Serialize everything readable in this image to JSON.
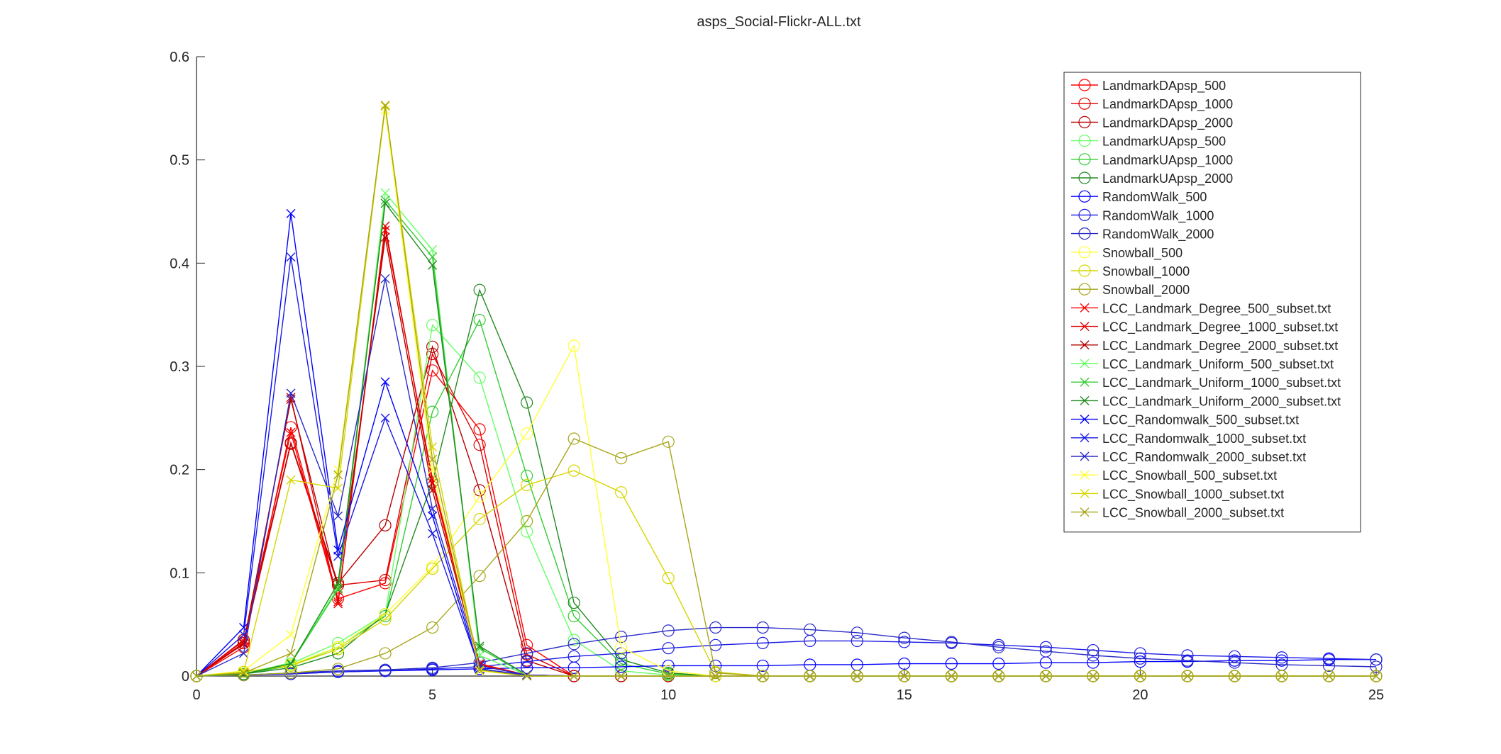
{
  "chart_data": {
    "type": "line",
    "title": "asps_Social-Flickr-ALL.txt",
    "xlabel": "",
    "ylabel": "",
    "xlim": [
      0,
      25
    ],
    "ylim": [
      0,
      0.6
    ],
    "xticks": [
      0,
      5,
      10,
      15,
      20,
      25
    ],
    "xtick_labels": [
      "0",
      "5",
      "10",
      "15",
      "20",
      "25"
    ],
    "yticks": [
      0,
      0.1,
      0.2,
      0.3,
      0.4,
      0.5,
      0.6
    ],
    "ytick_labels": [
      "0",
      "0.1",
      "0.2",
      "0.3",
      "0.4",
      "0.5",
      "0.6"
    ],
    "grid": false,
    "legend_position": "top-right",
    "x": [
      0,
      1,
      2,
      3,
      4,
      5,
      6,
      7,
      8,
      9,
      10,
      11,
      12,
      13,
      14,
      15,
      16,
      17,
      18,
      19,
      20,
      21,
      22,
      23,
      24,
      25
    ],
    "series": [
      {
        "name": "LandmarkDApsp_500",
        "color": "#ff0000",
        "marker": "circle",
        "values": [
          0,
          0.028,
          0.241,
          0.075,
          0.09,
          0.296,
          0.239,
          0.03,
          0,
          0,
          0,
          0,
          0,
          0,
          0,
          0,
          0,
          0,
          0,
          0,
          0,
          0,
          0,
          0,
          0,
          0
        ]
      },
      {
        "name": "LandmarkDApsp_1000",
        "color": "#e00000",
        "marker": "circle",
        "values": [
          0,
          0.032,
          0.225,
          0.088,
          0.093,
          0.312,
          0.224,
          0.021,
          0,
          0,
          0,
          0,
          0,
          0,
          0,
          0,
          0,
          0,
          0,
          0,
          0,
          0,
          0,
          0,
          0,
          0
        ]
      },
      {
        "name": "LandmarkDApsp_2000",
        "color": "#b80000",
        "marker": "circle",
        "values": [
          0,
          0.035,
          0.226,
          0.09,
          0.146,
          0.319,
          0.18,
          0.015,
          0,
          0,
          0,
          0,
          0,
          0,
          0,
          0,
          0,
          0,
          0,
          0,
          0,
          0,
          0,
          0,
          0,
          0
        ]
      },
      {
        "name": "LandmarkUApsp_500",
        "color": "#66ff66",
        "marker": "circle",
        "values": [
          0,
          0.002,
          0.012,
          0.032,
          0.06,
          0.34,
          0.289,
          0.14,
          0.035,
          0.005,
          0.001,
          0,
          0,
          0,
          0,
          0,
          0,
          0,
          0,
          0,
          0,
          0,
          0,
          0,
          0,
          0
        ]
      },
      {
        "name": "LandmarkUApsp_1000",
        "color": "#33cc33",
        "marker": "circle",
        "values": [
          0,
          0.002,
          0.01,
          0.028,
          0.058,
          0.256,
          0.345,
          0.194,
          0.058,
          0.012,
          0.002,
          0,
          0,
          0,
          0,
          0,
          0,
          0,
          0,
          0,
          0,
          0,
          0,
          0,
          0,
          0
        ]
      },
      {
        "name": "LandmarkUApsp_2000",
        "color": "#228b22",
        "marker": "circle",
        "values": [
          0,
          0.002,
          0.008,
          0.022,
          0.06,
          0.188,
          0.374,
          0.265,
          0.071,
          0.016,
          0.003,
          0,
          0,
          0,
          0,
          0,
          0,
          0,
          0,
          0,
          0,
          0,
          0,
          0,
          0,
          0
        ]
      },
      {
        "name": "RandomWalk_500",
        "color": "#0000ff",
        "marker": "circle",
        "values": [
          0,
          0.001,
          0.002,
          0.004,
          0.005,
          0.006,
          0.007,
          0.008,
          0.008,
          0.009,
          0.01,
          0.01,
          0.01,
          0.011,
          0.011,
          0.012,
          0.012,
          0.012,
          0.013,
          0.013,
          0.014,
          0.014,
          0.015,
          0.015,
          0.016,
          0.016
        ]
      },
      {
        "name": "RandomWalk_1000",
        "color": "#1a1ae6",
        "marker": "circle",
        "values": [
          0,
          0.001,
          0.002,
          0.004,
          0.005,
          0.007,
          0.009,
          0.014,
          0.019,
          0.022,
          0.027,
          0.03,
          0.032,
          0.034,
          0.034,
          0.033,
          0.032,
          0.03,
          0.028,
          0.025,
          0.022,
          0.02,
          0.019,
          0.018,
          0.017,
          0.016
        ]
      },
      {
        "name": "RandomWalk_2000",
        "color": "#2a2ac8",
        "marker": "circle",
        "values": [
          0,
          0.001,
          0.003,
          0.005,
          0.006,
          0.008,
          0.013,
          0.022,
          0.031,
          0.038,
          0.044,
          0.047,
          0.047,
          0.045,
          0.042,
          0.037,
          0.033,
          0.028,
          0.024,
          0.02,
          0.017,
          0.015,
          0.013,
          0.011,
          0.01,
          0.009
        ]
      },
      {
        "name": "Snowball_500",
        "color": "#ffff33",
        "marker": "circle",
        "values": [
          0,
          0.004,
          0.011,
          0.028,
          0.06,
          0.106,
          0.174,
          0.235,
          0.32,
          0.028,
          0.005,
          0,
          0,
          0,
          0,
          0,
          0,
          0,
          0,
          0,
          0,
          0,
          0,
          0,
          0,
          0
        ]
      },
      {
        "name": "Snowball_1000",
        "color": "#d6d600",
        "marker": "circle",
        "values": [
          0,
          0.004,
          0.01,
          0.026,
          0.055,
          0.104,
          0.152,
          0.185,
          0.199,
          0.178,
          0.095,
          0.004,
          0,
          0,
          0,
          0,
          0,
          0,
          0,
          0,
          0,
          0,
          0,
          0,
          0,
          0
        ]
      },
      {
        "name": "Snowball_2000",
        "color": "#a6a61a",
        "marker": "circle",
        "values": [
          0,
          0.001,
          0.003,
          0.007,
          0.022,
          0.047,
          0.097,
          0.15,
          0.23,
          0.211,
          0.227,
          0.003,
          0,
          0,
          0,
          0,
          0,
          0,
          0,
          0,
          0,
          0,
          0,
          0,
          0,
          0
        ]
      },
      {
        "name": "LCC_Landmark_Degree_500_subset.txt",
        "color": "#ff0000",
        "marker": "x",
        "values": [
          0,
          0.034,
          0.236,
          0.072,
          0.432,
          0.191,
          0.012,
          0.001,
          0,
          0,
          0,
          0,
          0,
          0,
          0,
          0,
          0,
          0,
          0,
          0,
          0,
          0,
          0,
          0,
          0,
          0
        ]
      },
      {
        "name": "LCC_Landmark_Degree_1000_subset.txt",
        "color": "#e00000",
        "marker": "x",
        "values": [
          0,
          0.031,
          0.27,
          0.07,
          0.436,
          0.187,
          0.011,
          0.001,
          0,
          0,
          0,
          0,
          0,
          0,
          0,
          0,
          0,
          0,
          0,
          0,
          0,
          0,
          0,
          0,
          0,
          0
        ]
      },
      {
        "name": "LCC_Landmark_Degree_2000_subset.txt",
        "color": "#b80000",
        "marker": "x",
        "values": [
          0,
          0.032,
          0.268,
          0.085,
          0.425,
          0.18,
          0.01,
          0.001,
          0,
          0,
          0,
          0,
          0,
          0,
          0,
          0,
          0,
          0,
          0,
          0,
          0,
          0,
          0,
          0,
          0,
          0
        ]
      },
      {
        "name": "LCC_Landmark_Uniform_500_subset.txt",
        "color": "#66ff66",
        "marker": "x",
        "values": [
          0,
          0.002,
          0.013,
          0.086,
          0.468,
          0.413,
          0.02,
          0.001,
          0,
          0,
          0,
          0,
          0,
          0,
          0,
          0,
          0,
          0,
          0,
          0,
          0,
          0,
          0,
          0,
          0,
          0
        ]
      },
      {
        "name": "LCC_Landmark_Uniform_1000_subset.txt",
        "color": "#33cc33",
        "marker": "x",
        "values": [
          0,
          0.002,
          0.012,
          0.084,
          0.461,
          0.406,
          0.027,
          0.001,
          0,
          0,
          0,
          0,
          0,
          0,
          0,
          0,
          0,
          0,
          0,
          0,
          0,
          0,
          0,
          0,
          0,
          0
        ]
      },
      {
        "name": "LCC_Landmark_Uniform_2000_subset.txt",
        "color": "#228b22",
        "marker": "x",
        "values": [
          0,
          0.002,
          0.012,
          0.09,
          0.458,
          0.398,
          0.029,
          0.001,
          0,
          0,
          0,
          0,
          0,
          0,
          0,
          0,
          0,
          0,
          0,
          0,
          0,
          0,
          0,
          0,
          0,
          0
        ]
      },
      {
        "name": "LCC_Randomwalk_500_subset.txt",
        "color": "#0000ff",
        "marker": "x",
        "values": [
          0,
          0.047,
          0.448,
          0.122,
          0.285,
          0.155,
          0.006,
          0.001,
          0,
          0,
          0,
          0,
          0,
          0,
          0,
          0,
          0,
          0,
          0,
          0,
          0,
          0,
          0,
          0,
          0,
          0
        ]
      },
      {
        "name": "LCC_Randomwalk_1000_subset.txt",
        "color": "#1a1ae6",
        "marker": "x",
        "values": [
          0,
          0.04,
          0.406,
          0.116,
          0.25,
          0.138,
          0.007,
          0.001,
          0,
          0,
          0,
          0,
          0,
          0,
          0,
          0,
          0,
          0,
          0,
          0,
          0,
          0,
          0,
          0,
          0,
          0
        ]
      },
      {
        "name": "LCC_Randomwalk_2000_subset.txt",
        "color": "#2a2ac8",
        "marker": "x",
        "values": [
          0,
          0.022,
          0.274,
          0.155,
          0.385,
          0.162,
          0.01,
          0.001,
          0,
          0,
          0,
          0,
          0,
          0,
          0,
          0,
          0,
          0,
          0,
          0,
          0,
          0,
          0,
          0,
          0,
          0
        ]
      },
      {
        "name": "LCC_Snowball_500_subset.txt",
        "color": "#ffff33",
        "marker": "x",
        "values": [
          0,
          0.005,
          0.04,
          0.2,
          0.548,
          0.2,
          0.005,
          0,
          0,
          0,
          0,
          0,
          0,
          0,
          0,
          0,
          0,
          0,
          0,
          0,
          0,
          0,
          0,
          0,
          0,
          0
        ]
      },
      {
        "name": "LCC_Snowball_1000_subset.txt",
        "color": "#d6d600",
        "marker": "x",
        "values": [
          0,
          0.004,
          0.19,
          0.182,
          0.552,
          0.222,
          0.006,
          0,
          0,
          0,
          0,
          0,
          0,
          0,
          0,
          0,
          0,
          0,
          0,
          0,
          0,
          0,
          0,
          0,
          0,
          0
        ]
      },
      {
        "name": "LCC_Snowball_2000_subset.txt",
        "color": "#a6a61a",
        "marker": "x",
        "values": [
          0,
          0.003,
          0.022,
          0.195,
          0.553,
          0.21,
          0.006,
          0,
          0,
          0,
          0,
          0,
          0,
          0,
          0,
          0,
          0,
          0,
          0,
          0,
          0,
          0,
          0,
          0,
          0,
          0
        ]
      }
    ]
  }
}
